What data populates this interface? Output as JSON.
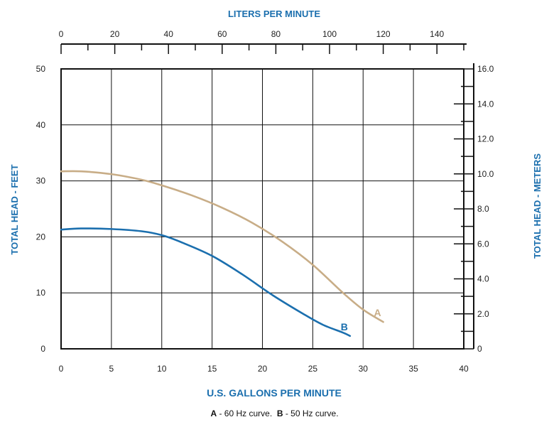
{
  "chart_data": {
    "type": "line",
    "title_top": "LITERS PER MINUTE",
    "xlabel": "U.S. GALLONS PER MINUTE",
    "ylabel_left": "TOTAL HEAD - FEET",
    "ylabel_right": "TOTAL HEAD - METERS",
    "x_range": [
      0,
      40
    ],
    "y_range": [
      0,
      50
    ],
    "top_range": [
      0,
      150
    ],
    "right_range": [
      0,
      16
    ],
    "x_ticks": [
      "0",
      "5",
      "10",
      "15",
      "20",
      "25",
      "30",
      "35",
      "40"
    ],
    "y_ticks": [
      "0",
      "10",
      "20",
      "30",
      "40",
      "50"
    ],
    "top_ticks": [
      "0",
      "20",
      "40",
      "60",
      "80",
      "100",
      "120",
      "140"
    ],
    "right_ticks": [
      "0",
      "2.0",
      "4.0",
      "6.0",
      "8.0",
      "10.0",
      "12.0",
      "14.0",
      "16.0"
    ],
    "grid": true,
    "series": [
      {
        "name": "A",
        "color": "#c8ad87",
        "x": [
          0,
          2,
          5,
          8,
          10,
          13,
          16,
          19,
          22,
          25,
          28,
          30,
          32
        ],
        "y": [
          31.7,
          31.7,
          31.2,
          30.2,
          29.2,
          27.4,
          25.2,
          22.5,
          19.1,
          15.0,
          10.0,
          7.0,
          4.8
        ]
      },
      {
        "name": "B",
        "color": "#1b6fae",
        "x": [
          0,
          2,
          5,
          8,
          10,
          12,
          15,
          18,
          21,
          24,
          26,
          28,
          28.7
        ],
        "y": [
          21.3,
          21.5,
          21.4,
          21.0,
          20.3,
          19.0,
          16.6,
          13.3,
          9.6,
          6.3,
          4.3,
          2.9,
          2.3
        ]
      }
    ]
  },
  "caption": {
    "a_letter": "A",
    "a_text": " - 60 Hz curve.  ",
    "b_letter": "B",
    "b_text": " - 50 Hz curve."
  }
}
